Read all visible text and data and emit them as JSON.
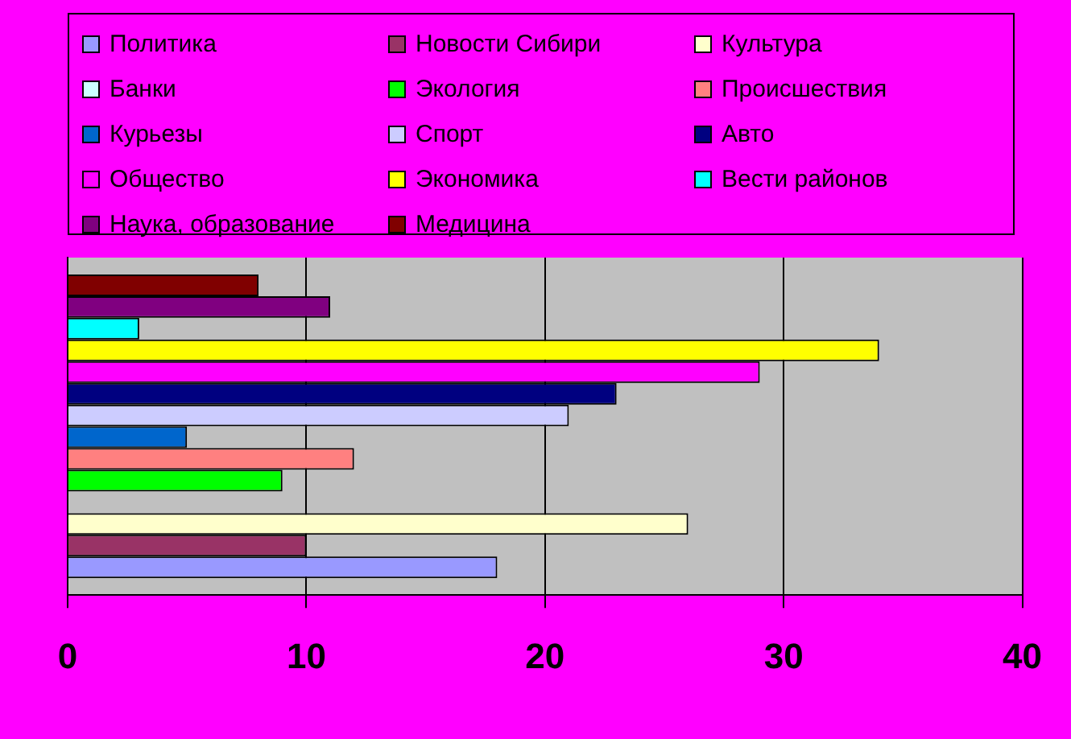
{
  "chart_data": {
    "type": "bar",
    "orientation": "horizontal",
    "categories": [
      null
    ],
    "series": [
      {
        "name": "Политика",
        "color": "#9999ff",
        "values": [
          18
        ]
      },
      {
        "name": "Новости Сибири",
        "color": "#993366",
        "values": [
          10
        ]
      },
      {
        "name": "Культура",
        "color": "#ffffcc",
        "values": [
          26
        ]
      },
      {
        "name": "Банки",
        "color": "#ccffff",
        "values": [
          0
        ]
      },
      {
        "name": "Экология",
        "color": "#00ff00",
        "values": [
          9
        ]
      },
      {
        "name": "Происшествия",
        "color": "#ff8080",
        "values": [
          12
        ]
      },
      {
        "name": "Курьезы",
        "color": "#0066cc",
        "values": [
          5
        ]
      },
      {
        "name": "Спорт",
        "color": "#ccccff",
        "values": [
          21
        ]
      },
      {
        "name": "Авто",
        "color": "#000080",
        "values": [
          23
        ]
      },
      {
        "name": "Общество",
        "color": "#ff00ff",
        "values": [
          29
        ]
      },
      {
        "name": "Экономика",
        "color": "#ffff00",
        "values": [
          34
        ]
      },
      {
        "name": "Вести районов",
        "color": "#00ffff",
        "values": [
          3
        ]
      },
      {
        "name": "Наука, образование",
        "color": "#800080",
        "values": [
          11
        ]
      },
      {
        "name": "Медицина",
        "color": "#800000",
        "values": [
          8
        ]
      }
    ],
    "xlim": [
      0,
      40
    ],
    "xticks": [
      0,
      10,
      20,
      30,
      40
    ],
    "grid": "x",
    "legend": "top"
  }
}
